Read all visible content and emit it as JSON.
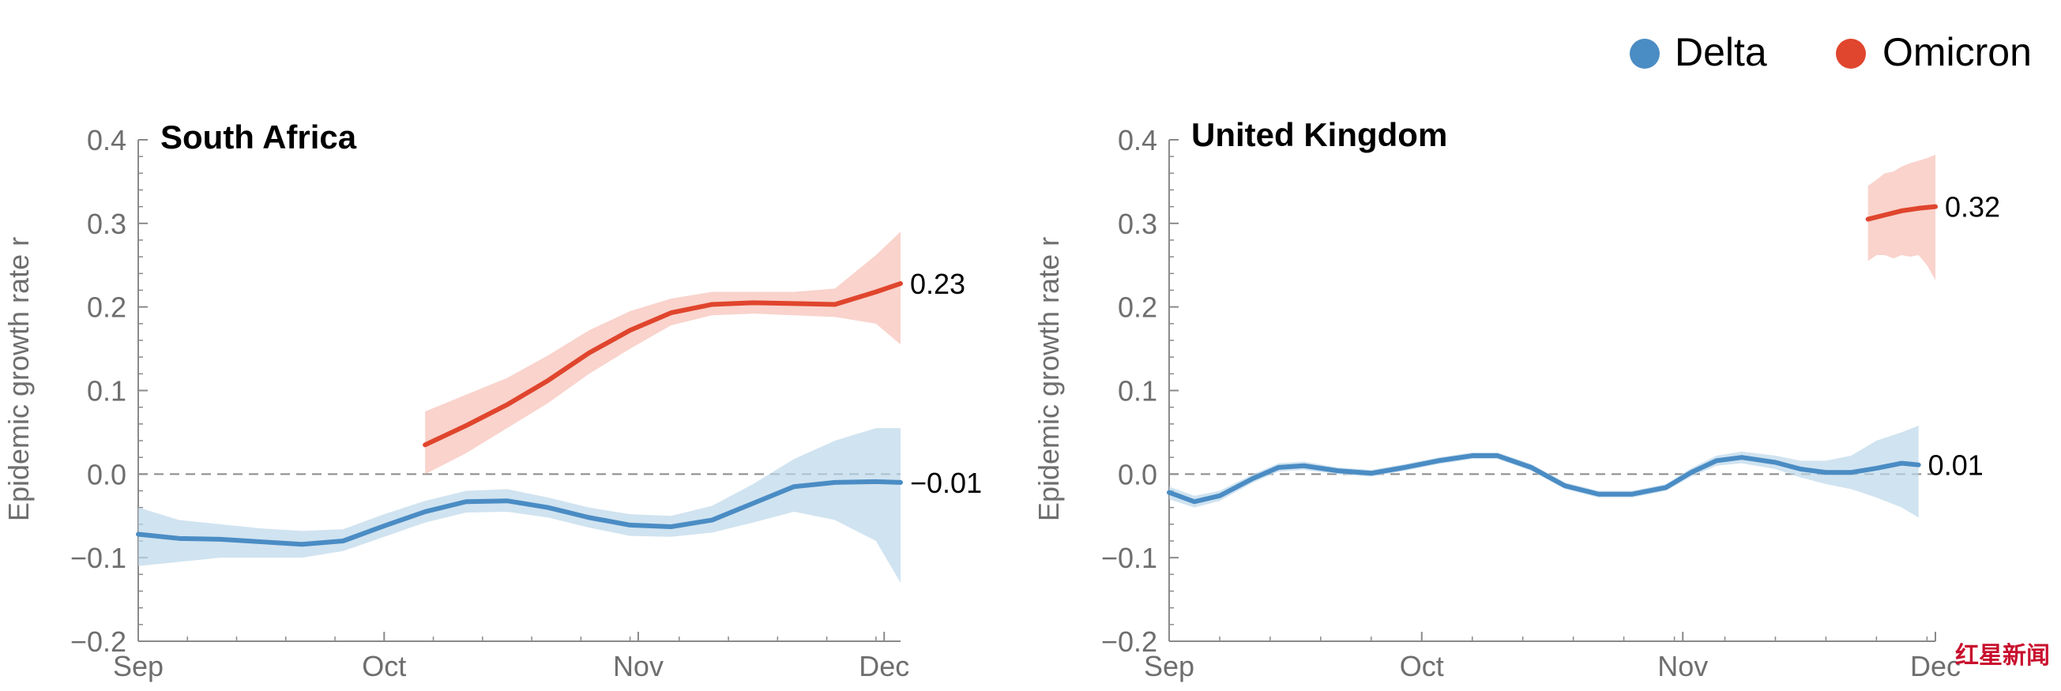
{
  "legend": {
    "entries": [
      {
        "name": "Delta",
        "color": "#4a8cc4"
      },
      {
        "name": "Omicron",
        "color": "#e0452d"
      }
    ]
  },
  "watermark": "红星新闻",
  "chart_data": [
    {
      "type": "line",
      "title": "South Africa",
      "xlabel": "",
      "ylabel": "Epidemic growth rate r",
      "ylim": [
        -0.2,
        0.4
      ],
      "y_ticks": [
        "0.4",
        "0.3",
        "0.2",
        "0.1",
        "0.0",
        "−0.1",
        "−0.2"
      ],
      "x_ticks": [
        "Sep",
        "Oct",
        "Nov",
        "Dec"
      ],
      "reference_line": 0.0,
      "series": [
        {
          "name": "Delta",
          "color": "#4a8cc4",
          "end_label": "−0.01",
          "points": [
            [
              0,
              -0.072
            ],
            [
              5,
              -0.077
            ],
            [
              10,
              -0.078
            ],
            [
              15,
              -0.081
            ],
            [
              20,
              -0.084
            ],
            [
              25,
              -0.08
            ],
            [
              30,
              -0.062
            ],
            [
              35,
              -0.045
            ],
            [
              40,
              -0.033
            ],
            [
              45,
              -0.032
            ],
            [
              50,
              -0.04
            ],
            [
              55,
              -0.052
            ],
            [
              60,
              -0.061
            ],
            [
              65,
              -0.063
            ],
            [
              70,
              -0.055
            ],
            [
              75,
              -0.035
            ],
            [
              80,
              -0.015
            ],
            [
              85,
              -0.01
            ],
            [
              90,
              -0.009
            ],
            [
              93,
              -0.01
            ]
          ],
          "band": [
            [
              0,
              -0.11,
              -0.04
            ],
            [
              5,
              -0.105,
              -0.055
            ],
            [
              10,
              -0.1,
              -0.06
            ],
            [
              15,
              -0.1,
              -0.065
            ],
            [
              20,
              -0.1,
              -0.068
            ],
            [
              25,
              -0.092,
              -0.066
            ],
            [
              30,
              -0.075,
              -0.048
            ],
            [
              35,
              -0.058,
              -0.032
            ],
            [
              40,
              -0.046,
              -0.02
            ],
            [
              45,
              -0.045,
              -0.018
            ],
            [
              50,
              -0.052,
              -0.028
            ],
            [
              55,
              -0.064,
              -0.04
            ],
            [
              60,
              -0.074,
              -0.048
            ],
            [
              65,
              -0.075,
              -0.05
            ],
            [
              70,
              -0.07,
              -0.038
            ],
            [
              75,
              -0.058,
              -0.012
            ],
            [
              80,
              -0.045,
              0.018
            ],
            [
              85,
              -0.055,
              0.04
            ],
            [
              90,
              -0.08,
              0.055
            ],
            [
              93,
              -0.13,
              0.055
            ]
          ]
        },
        {
          "name": "Omicron",
          "color": "#e0452d",
          "end_label": "0.23",
          "points": [
            [
              35,
              0.035
            ],
            [
              40,
              0.058
            ],
            [
              45,
              0.083
            ],
            [
              50,
              0.112
            ],
            [
              55,
              0.145
            ],
            [
              60,
              0.172
            ],
            [
              65,
              0.193
            ],
            [
              70,
              0.203
            ],
            [
              75,
              0.205
            ],
            [
              80,
              0.204
            ],
            [
              85,
              0.203
            ],
            [
              90,
              0.218
            ],
            [
              93,
              0.228
            ]
          ],
          "band": [
            [
              35,
              0.0,
              0.075
            ],
            [
              40,
              0.025,
              0.095
            ],
            [
              45,
              0.055,
              0.115
            ],
            [
              50,
              0.085,
              0.142
            ],
            [
              55,
              0.12,
              0.172
            ],
            [
              60,
              0.15,
              0.195
            ],
            [
              65,
              0.178,
              0.21
            ],
            [
              70,
              0.19,
              0.218
            ],
            [
              75,
              0.192,
              0.218
            ],
            [
              80,
              0.19,
              0.218
            ],
            [
              85,
              0.188,
              0.222
            ],
            [
              90,
              0.18,
              0.262
            ],
            [
              93,
              0.155,
              0.29
            ]
          ]
        }
      ]
    },
    {
      "type": "line",
      "title": "United Kingdom",
      "xlabel": "",
      "ylabel": "Epidemic growth rate r",
      "ylim": [
        -0.2,
        0.4
      ],
      "y_ticks": [
        "0.4",
        "0.3",
        "0.2",
        "0.1",
        "0.0",
        "−0.1",
        "−0.2"
      ],
      "x_ticks": [
        "Sep",
        "Oct",
        "Nov",
        "Dec"
      ],
      "reference_line": 0.0,
      "series": [
        {
          "name": "Delta",
          "color": "#4a8cc4",
          "end_label": "0.01",
          "points": [
            [
              0,
              -0.022
            ],
            [
              3,
              -0.033
            ],
            [
              6,
              -0.026
            ],
            [
              10,
              -0.005
            ],
            [
              13,
              0.008
            ],
            [
              16,
              0.01
            ],
            [
              20,
              0.004
            ],
            [
              24,
              0.001
            ],
            [
              28,
              0.008
            ],
            [
              32,
              0.016
            ],
            [
              36,
              0.022
            ],
            [
              39,
              0.022
            ],
            [
              43,
              0.008
            ],
            [
              47,
              -0.014
            ],
            [
              51,
              -0.024
            ],
            [
              55,
              -0.024
            ],
            [
              59,
              -0.016
            ],
            [
              62,
              0.002
            ],
            [
              65,
              0.016
            ],
            [
              68,
              0.02
            ],
            [
              72,
              0.014
            ],
            [
              75,
              0.006
            ],
            [
              78,
              0.002
            ],
            [
              81,
              0.002
            ],
            [
              84,
              0.007
            ],
            [
              87,
              0.013
            ],
            [
              89,
              0.011
            ]
          ],
          "band": [
            [
              0,
              -0.03,
              -0.015
            ],
            [
              3,
              -0.04,
              -0.026
            ],
            [
              6,
              -0.032,
              -0.02
            ],
            [
              10,
              -0.01,
              0.0
            ],
            [
              13,
              0.003,
              0.013
            ],
            [
              16,
              0.005,
              0.015
            ],
            [
              20,
              0.0,
              0.008
            ],
            [
              24,
              -0.003,
              0.005
            ],
            [
              28,
              0.004,
              0.012
            ],
            [
              32,
              0.012,
              0.02
            ],
            [
              36,
              0.018,
              0.026
            ],
            [
              39,
              0.018,
              0.026
            ],
            [
              43,
              0.004,
              0.012
            ],
            [
              47,
              -0.018,
              -0.01
            ],
            [
              51,
              -0.028,
              -0.02
            ],
            [
              55,
              -0.028,
              -0.02
            ],
            [
              59,
              -0.02,
              -0.012
            ],
            [
              62,
              -0.003,
              0.007
            ],
            [
              65,
              0.01,
              0.022
            ],
            [
              68,
              0.013,
              0.027
            ],
            [
              72,
              0.006,
              0.022
            ],
            [
              75,
              -0.004,
              0.016
            ],
            [
              78,
              -0.012,
              0.016
            ],
            [
              81,
              -0.018,
              0.022
            ],
            [
              84,
              -0.028,
              0.04
            ],
            [
              87,
              -0.04,
              0.05
            ],
            [
              89,
              -0.052,
              0.058
            ]
          ]
        },
        {
          "name": "Omicron",
          "color": "#e0452d",
          "end_label": "0.32",
          "points": [
            [
              83,
              0.305
            ],
            [
              85,
              0.31
            ],
            [
              87,
              0.315
            ],
            [
              89,
              0.318
            ],
            [
              91,
              0.32
            ]
          ],
          "band": [
            [
              83,
              0.255,
              0.345
            ],
            [
              84,
              0.262,
              0.352
            ],
            [
              85,
              0.262,
              0.36
            ],
            [
              86,
              0.258,
              0.362
            ],
            [
              87,
              0.262,
              0.368
            ],
            [
              88,
              0.26,
              0.372
            ],
            [
              89,
              0.262,
              0.375
            ],
            [
              90,
              0.25,
              0.378
            ],
            [
              91,
              0.232,
              0.382
            ]
          ]
        }
      ]
    }
  ]
}
